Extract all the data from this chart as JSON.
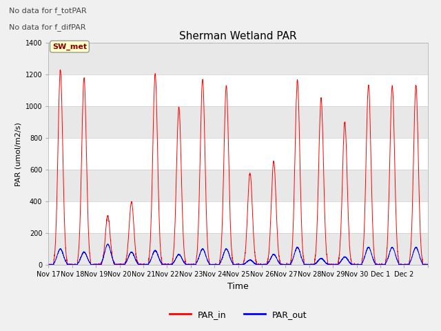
{
  "title": "Sherman Wetland PAR",
  "ylabel": "PAR (umol/m2/s)",
  "xlabel": "Time",
  "annotation1": "No data for f_totPAR",
  "annotation2": "No data for f_difPAR",
  "legend_label": "SW_met",
  "legend_label1": "PAR_in",
  "legend_label2": "PAR_out",
  "ylim": [
    0,
    1400
  ],
  "fig_bg_color": "#f0f0f0",
  "plot_bg_color": "#ffffff",
  "grid_color": "#dddddd",
  "line_color_in": "red",
  "line_color_out": "blue",
  "tick_labels": [
    "Nov 17",
    "Nov 18",
    "Nov 19",
    "Nov 20",
    "Nov 21",
    "Nov 22",
    "Nov 23",
    "Nov 24",
    "Nov 25",
    "Nov 26",
    "Nov 27",
    "Nov 28",
    "Nov 29",
    "Nov 30",
    "Dec 1",
    "Dec 2"
  ],
  "day_peaks_in": [
    1230,
    1180,
    310,
    395,
    1205,
    995,
    1170,
    1130,
    580,
    650,
    1165,
    1050,
    900,
    1135,
    1130,
    1130
  ],
  "day_peaks_out": [
    100,
    80,
    130,
    80,
    90,
    65,
    100,
    100,
    30,
    65,
    110,
    40,
    50,
    110,
    110,
    110
  ]
}
